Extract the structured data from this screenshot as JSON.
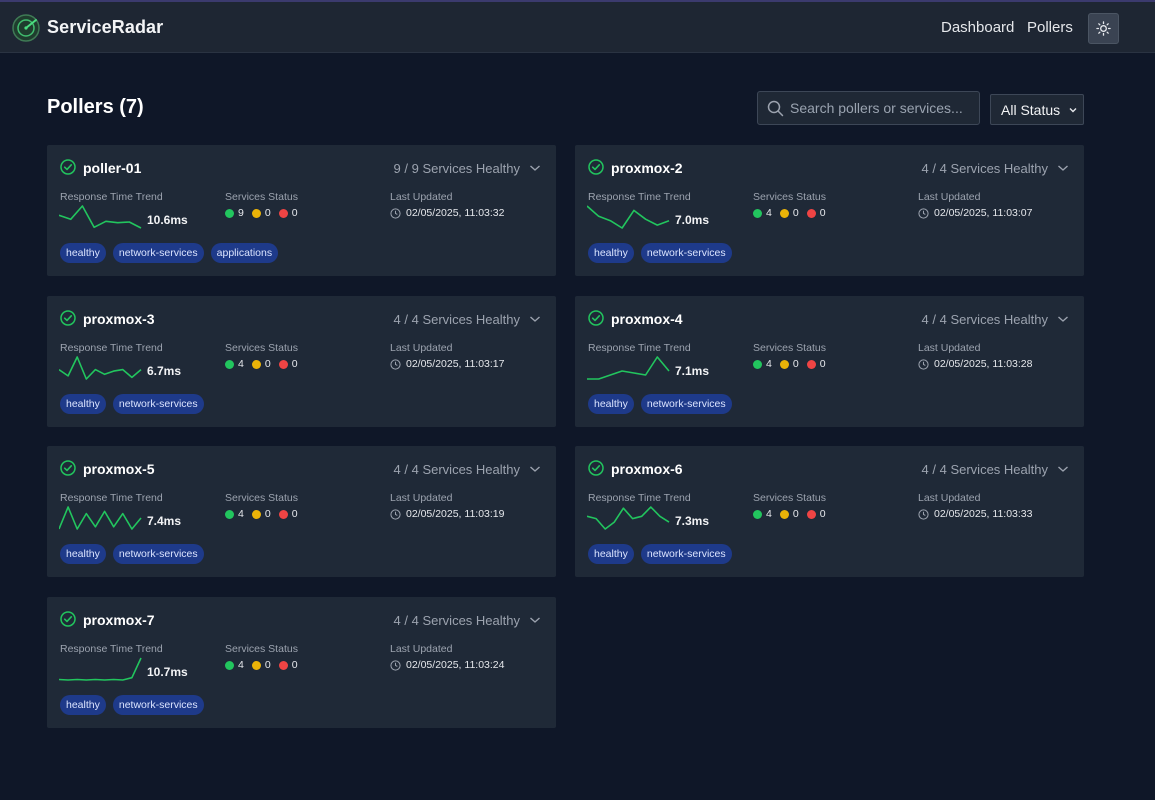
{
  "app": {
    "brand": "ServiceRadar",
    "nav": {
      "dashboard": "Dashboard",
      "pollers": "Pollers"
    },
    "theme_toggle_icon": "sun-icon"
  },
  "header": {
    "title": "Pollers (7)",
    "search_placeholder": "Search pollers or services...",
    "status_filter": "All Status"
  },
  "colors": {
    "healthy": "#22c55e",
    "warning": "#eab308",
    "critical": "#ef4444",
    "tag_bg": "#1e3a8a"
  },
  "labels": {
    "response_time_trend": "Response Time Trend",
    "services_status": "Services Status",
    "last_updated": "Last Updated"
  },
  "pollers": [
    {
      "name": "poller-01",
      "health": "9 / 9 Services Healthy",
      "response_time": "10.6ms",
      "trend": [
        11.8,
        11.2,
        13.2,
        10.0,
        10.9,
        10.7,
        10.8,
        9.9
      ],
      "healthy": "9",
      "warning": "0",
      "critical": "0",
      "updated": "02/05/2025, 11:03:32",
      "tags": [
        "healthy",
        "network-services",
        "applications"
      ]
    },
    {
      "name": "proxmox-2",
      "health": "4 / 4 Services Healthy",
      "response_time": "7.0ms",
      "trend": [
        7.6,
        6.9,
        6.6,
        6.1,
        7.3,
        6.7,
        6.3,
        6.6
      ],
      "healthy": "4",
      "warning": "0",
      "critical": "0",
      "updated": "02/05/2025, 11:03:07",
      "tags": [
        "healthy",
        "network-services"
      ]
    },
    {
      "name": "proxmox-3",
      "health": "4 / 4 Services Healthy",
      "response_time": "6.7ms",
      "trend": [
        6.7,
        6.3,
        7.5,
        6.1,
        6.7,
        6.4,
        6.6,
        6.7,
        6.2,
        6.7
      ],
      "healthy": "4",
      "warning": "0",
      "critical": "0",
      "updated": "02/05/2025, 11:03:17",
      "tags": [
        "healthy",
        "network-services"
      ]
    },
    {
      "name": "proxmox-4",
      "health": "4 / 4 Services Healthy",
      "response_time": "7.1ms",
      "trend": [
        6.4,
        6.4,
        6.6,
        6.8,
        6.7,
        6.6,
        7.5,
        6.8
      ],
      "healthy": "4",
      "warning": "0",
      "critical": "0",
      "updated": "02/05/2025, 11:03:28",
      "tags": [
        "healthy",
        "network-services"
      ]
    },
    {
      "name": "proxmox-5",
      "health": "4 / 4 Services Healthy",
      "response_time": "7.4ms",
      "trend": [
        7.2,
        8.2,
        7.2,
        7.9,
        7.3,
        8.0,
        7.3,
        7.9,
        7.2,
        7.7
      ],
      "healthy": "4",
      "warning": "0",
      "critical": "0",
      "updated": "02/05/2025, 11:03:19",
      "tags": [
        "healthy",
        "network-services"
      ]
    },
    {
      "name": "proxmox-6",
      "health": "4 / 4 Services Healthy",
      "response_time": "7.3ms",
      "trend": [
        7.1,
        6.9,
        6.0,
        6.6,
        7.8,
        6.9,
        7.1,
        7.9,
        7.1,
        6.6
      ],
      "healthy": "4",
      "warning": "0",
      "critical": "0",
      "updated": "02/05/2025, 11:03:33",
      "tags": [
        "healthy",
        "network-services"
      ]
    },
    {
      "name": "proxmox-7",
      "health": "4 / 4 Services Healthy",
      "response_time": "10.7ms",
      "trend": [
        6.1,
        6.0,
        6.1,
        6.0,
        6.1,
        6.0,
        6.1,
        6.0,
        6.5,
        10.7
      ],
      "healthy": "4",
      "warning": "0",
      "critical": "0",
      "updated": "02/05/2025, 11:03:24",
      "tags": [
        "healthy",
        "network-services"
      ]
    }
  ]
}
